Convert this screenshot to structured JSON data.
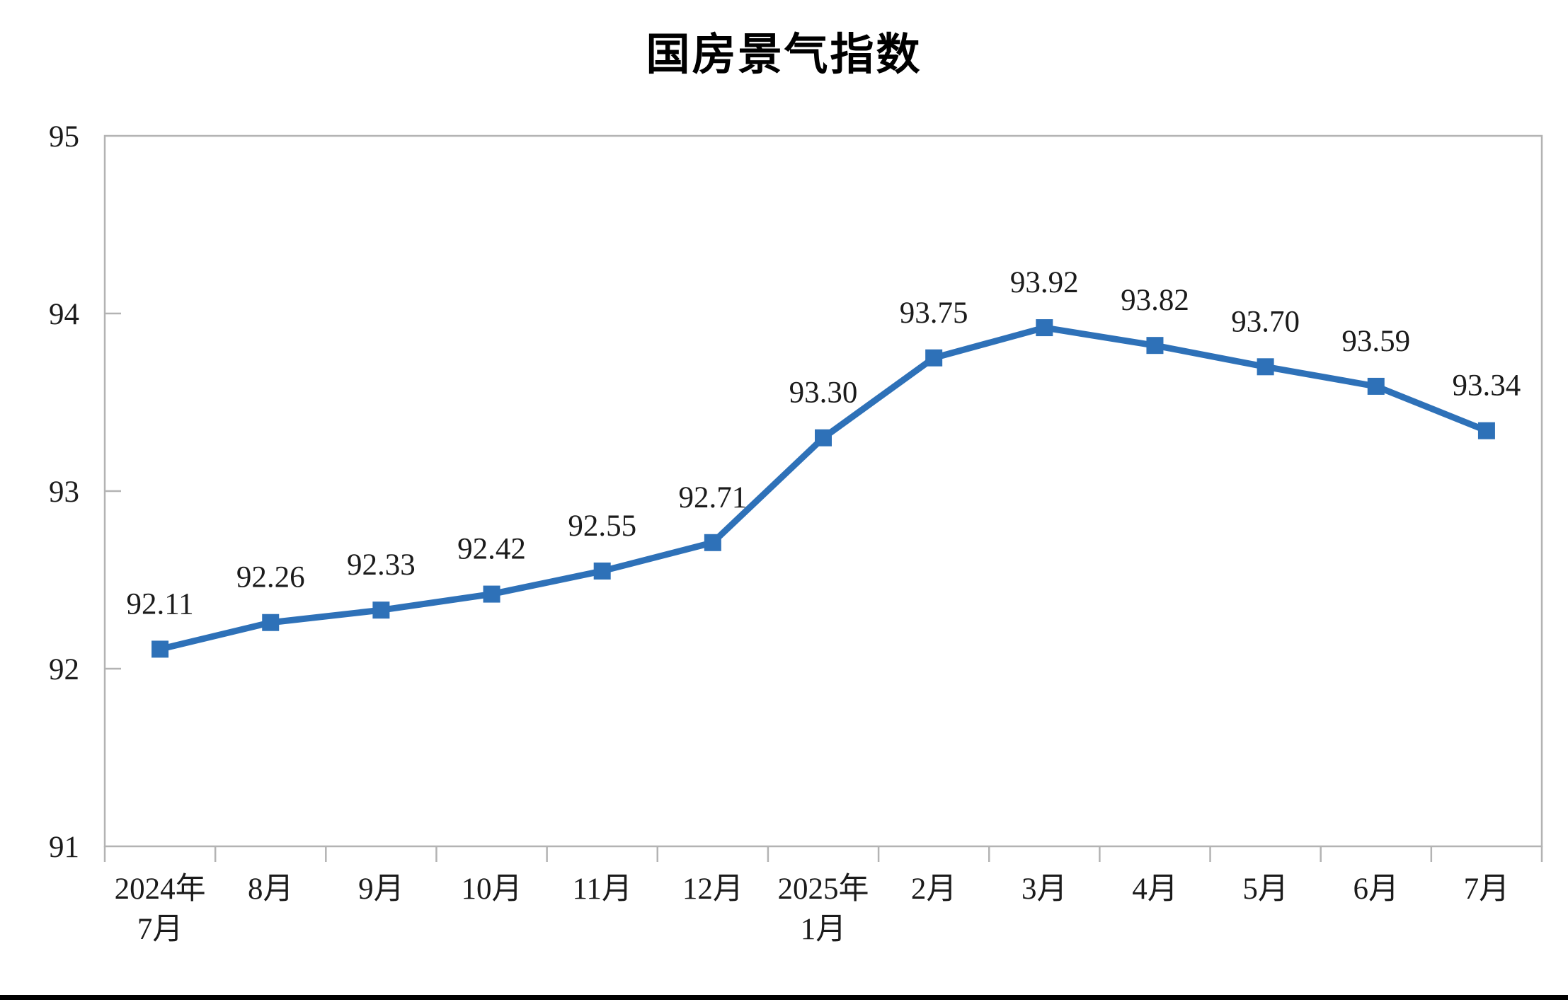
{
  "page": {
    "background": "#ffffff",
    "bottom_divider_color": "#000000"
  },
  "chart_data": {
    "type": "line",
    "title": "国房景气指数",
    "categories": [
      "2024年\n7月",
      "8月",
      "9月",
      "10月",
      "11月",
      "12月",
      "2025年\n1月",
      "2月",
      "3月",
      "4月",
      "5月",
      "6月",
      "7月"
    ],
    "series": [
      {
        "name": "国房景气指数",
        "values": [
          92.11,
          92.26,
          92.33,
          92.42,
          92.55,
          92.71,
          93.3,
          93.75,
          93.92,
          93.82,
          93.7,
          93.59,
          93.34
        ],
        "labels": [
          "92.11",
          "92.26",
          "92.33",
          "92.42",
          "92.55",
          "92.71",
          "93.30",
          "93.75",
          "93.92",
          "93.82",
          "93.70",
          "93.59",
          "93.34"
        ],
        "color": "#2E71B8",
        "marker": "square"
      }
    ],
    "xlabel": "",
    "ylabel": "",
    "ylim": [
      91,
      95
    ],
    "y_ticks": [
      91,
      92,
      93,
      94,
      95
    ],
    "grid": false,
    "legend": false,
    "data_labels_position": "above",
    "axis_color": "#b3b3b3"
  }
}
